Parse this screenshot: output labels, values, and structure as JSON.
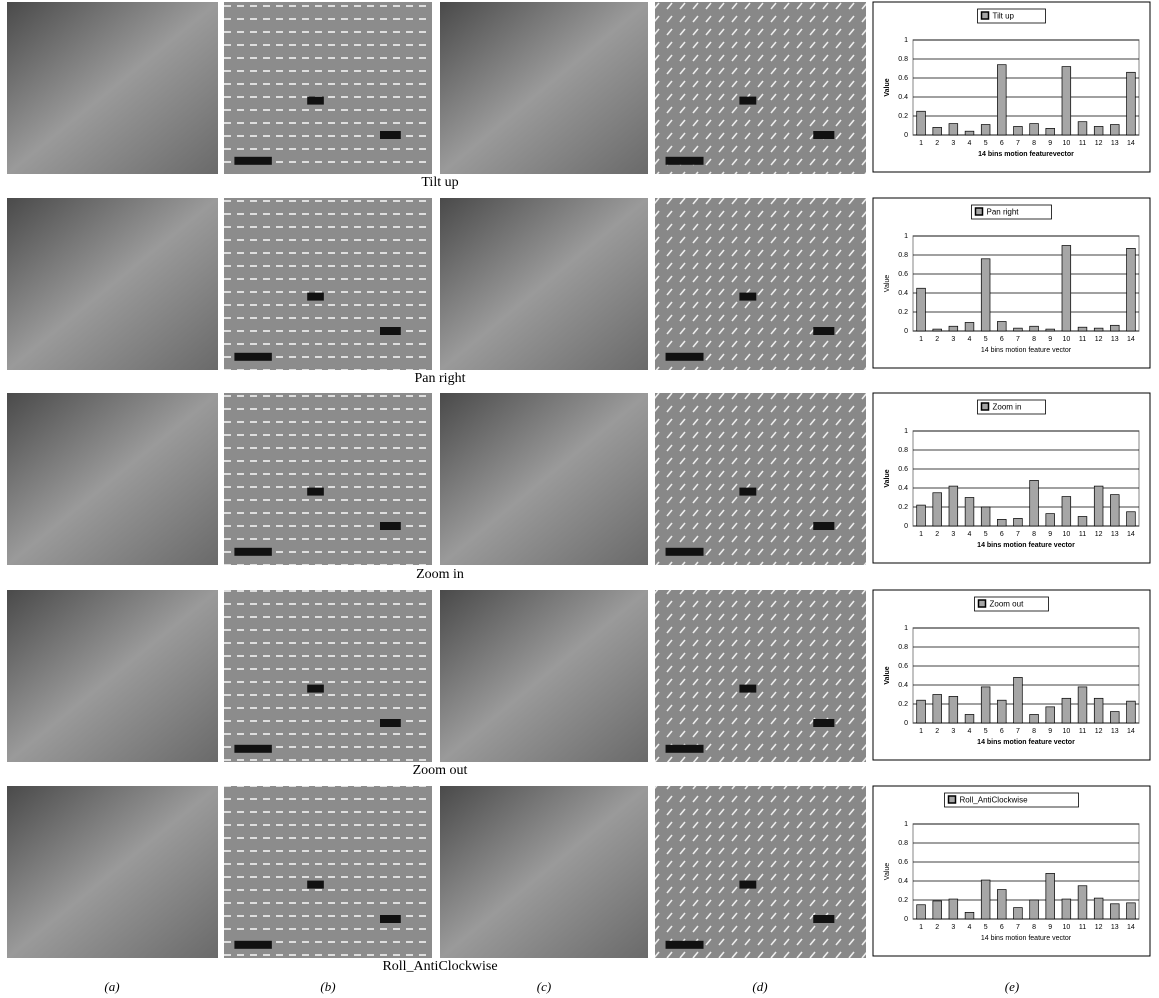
{
  "chart_data": [
    {
      "type": "bar",
      "categories": [
        "1",
        "2",
        "3",
        "4",
        "5",
        "6",
        "7",
        "8",
        "9",
        "10",
        "11",
        "12",
        "13",
        "14"
      ],
      "series": [
        {
          "name": "Tilt up",
          "color": "#a6a6a6",
          "values": [
            0.25,
            0.08,
            0.12,
            0.04,
            0.11,
            0.74,
            0.09,
            0.12,
            0.07,
            0.72,
            0.14,
            0.09,
            0.11,
            0.66
          ]
        }
      ],
      "ylim": [
        0,
        1
      ],
      "yticks": [
        0,
        0.2,
        0.4,
        0.6,
        0.8,
        1
      ],
      "xlabel": "14 bins motion featurevector",
      "ylabel": "Value",
      "grid": true,
      "legend": "top"
    },
    {
      "type": "bar",
      "categories": [
        "1",
        "2",
        "3",
        "4",
        "5",
        "6",
        "7",
        "8",
        "9",
        "10",
        "11",
        "12",
        "13",
        "14"
      ],
      "series": [
        {
          "name": "Pan right",
          "color": "#a6a6a6",
          "values": [
            0.45,
            0.02,
            0.05,
            0.09,
            0.76,
            0.1,
            0.03,
            0.05,
            0.02,
            0.9,
            0.04,
            0.03,
            0.06,
            0.87
          ]
        }
      ],
      "ylim": [
        0,
        1
      ],
      "yticks": [
        0,
        0.2,
        0.4,
        0.6,
        0.8,
        1
      ],
      "xlabel": "14 bins motion feature vector",
      "ylabel": "Value",
      "grid": true,
      "legend": "top"
    },
    {
      "type": "bar",
      "categories": [
        "1",
        "2",
        "3",
        "4",
        "5",
        "6",
        "7",
        "8",
        "9",
        "10",
        "11",
        "12",
        "13",
        "14"
      ],
      "series": [
        {
          "name": "Zoom in",
          "color": "#a6a6a6",
          "values": [
            0.22,
            0.35,
            0.42,
            0.3,
            0.2,
            0.07,
            0.08,
            0.48,
            0.13,
            0.31,
            0.1,
            0.42,
            0.33,
            0.15
          ]
        }
      ],
      "ylim": [
        0,
        1
      ],
      "yticks": [
        0,
        0.2,
        0.4,
        0.6,
        0.8,
        1
      ],
      "xlabel": "14 bins motion feature vector",
      "ylabel": "Value",
      "grid": true,
      "legend": "top"
    },
    {
      "type": "bar",
      "categories": [
        "1",
        "2",
        "3",
        "4",
        "5",
        "6",
        "7",
        "8",
        "9",
        "10",
        "11",
        "12",
        "13",
        "14"
      ],
      "series": [
        {
          "name": "Zoom out",
          "color": "#a6a6a6",
          "values": [
            0.24,
            0.3,
            0.28,
            0.09,
            0.38,
            0.24,
            0.48,
            0.09,
            0.17,
            0.26,
            0.38,
            0.26,
            0.12,
            0.23
          ]
        }
      ],
      "ylim": [
        0,
        1
      ],
      "yticks": [
        0,
        0.2,
        0.4,
        0.6,
        0.8,
        1
      ],
      "xlabel": "14 bins motion feature vector",
      "ylabel": "Value",
      "grid": true,
      "legend": "top"
    },
    {
      "type": "bar",
      "categories": [
        "1",
        "2",
        "3",
        "4",
        "5",
        "6",
        "7",
        "8",
        "9",
        "10",
        "11",
        "12",
        "13",
        "14"
      ],
      "series": [
        {
          "name": "Roll_AntiClockwise",
          "color": "#a6a6a6",
          "values": [
            0.15,
            0.19,
            0.21,
            0.07,
            0.41,
            0.31,
            0.12,
            0.2,
            0.48,
            0.21,
            0.35,
            0.22,
            0.16,
            0.17
          ]
        }
      ],
      "ylim": [
        0,
        1
      ],
      "yticks": [
        0,
        0.2,
        0.4,
        0.6,
        0.8,
        1
      ],
      "xlabel": "14 bins motion feature vector",
      "ylabel": "Value",
      "grid": true,
      "legend": "top"
    }
  ],
  "row_captions": [
    "Tilt up",
    "Pan right",
    "Zoom in",
    "Zoom out",
    "Roll_AntiClockwise"
  ],
  "column_labels": [
    "(a)",
    "(b)",
    "(c)",
    "(d)",
    "(e)"
  ]
}
